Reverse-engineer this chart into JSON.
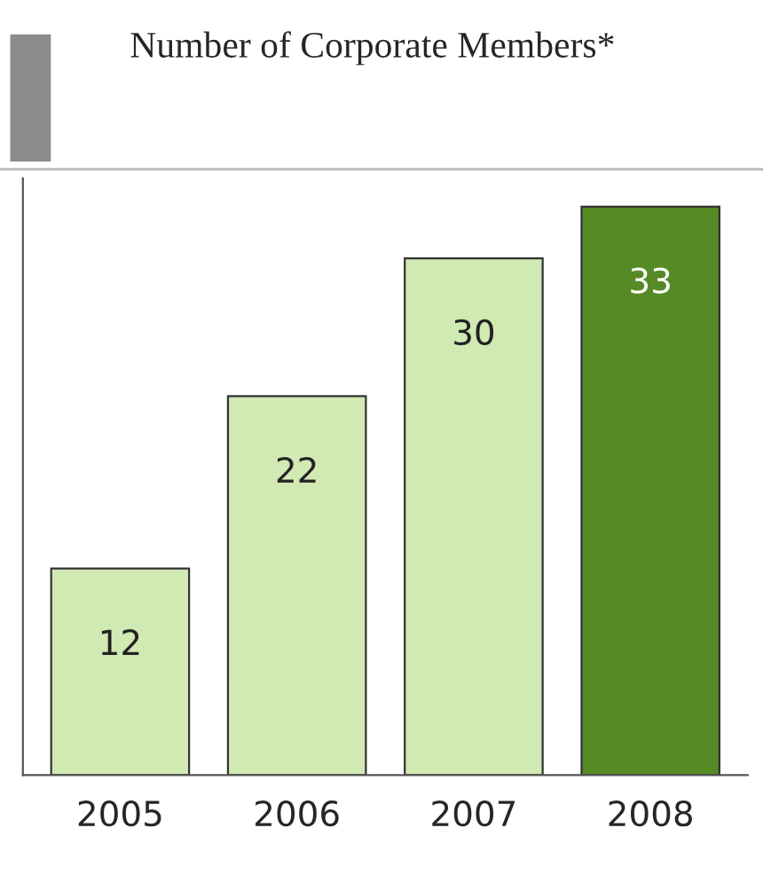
{
  "chart_data": {
    "type": "bar",
    "title": "Number of Corporate Members*",
    "categories": [
      "2005",
      "2006",
      "2007",
      "2008"
    ],
    "values": [
      12,
      22,
      30,
      33
    ],
    "colors": [
      "#d1e9b3",
      "#d1e9b3",
      "#d1e9b3",
      "#568a25"
    ],
    "data_labels": true,
    "tick_labels": "x",
    "grid": false,
    "legend": false
  }
}
